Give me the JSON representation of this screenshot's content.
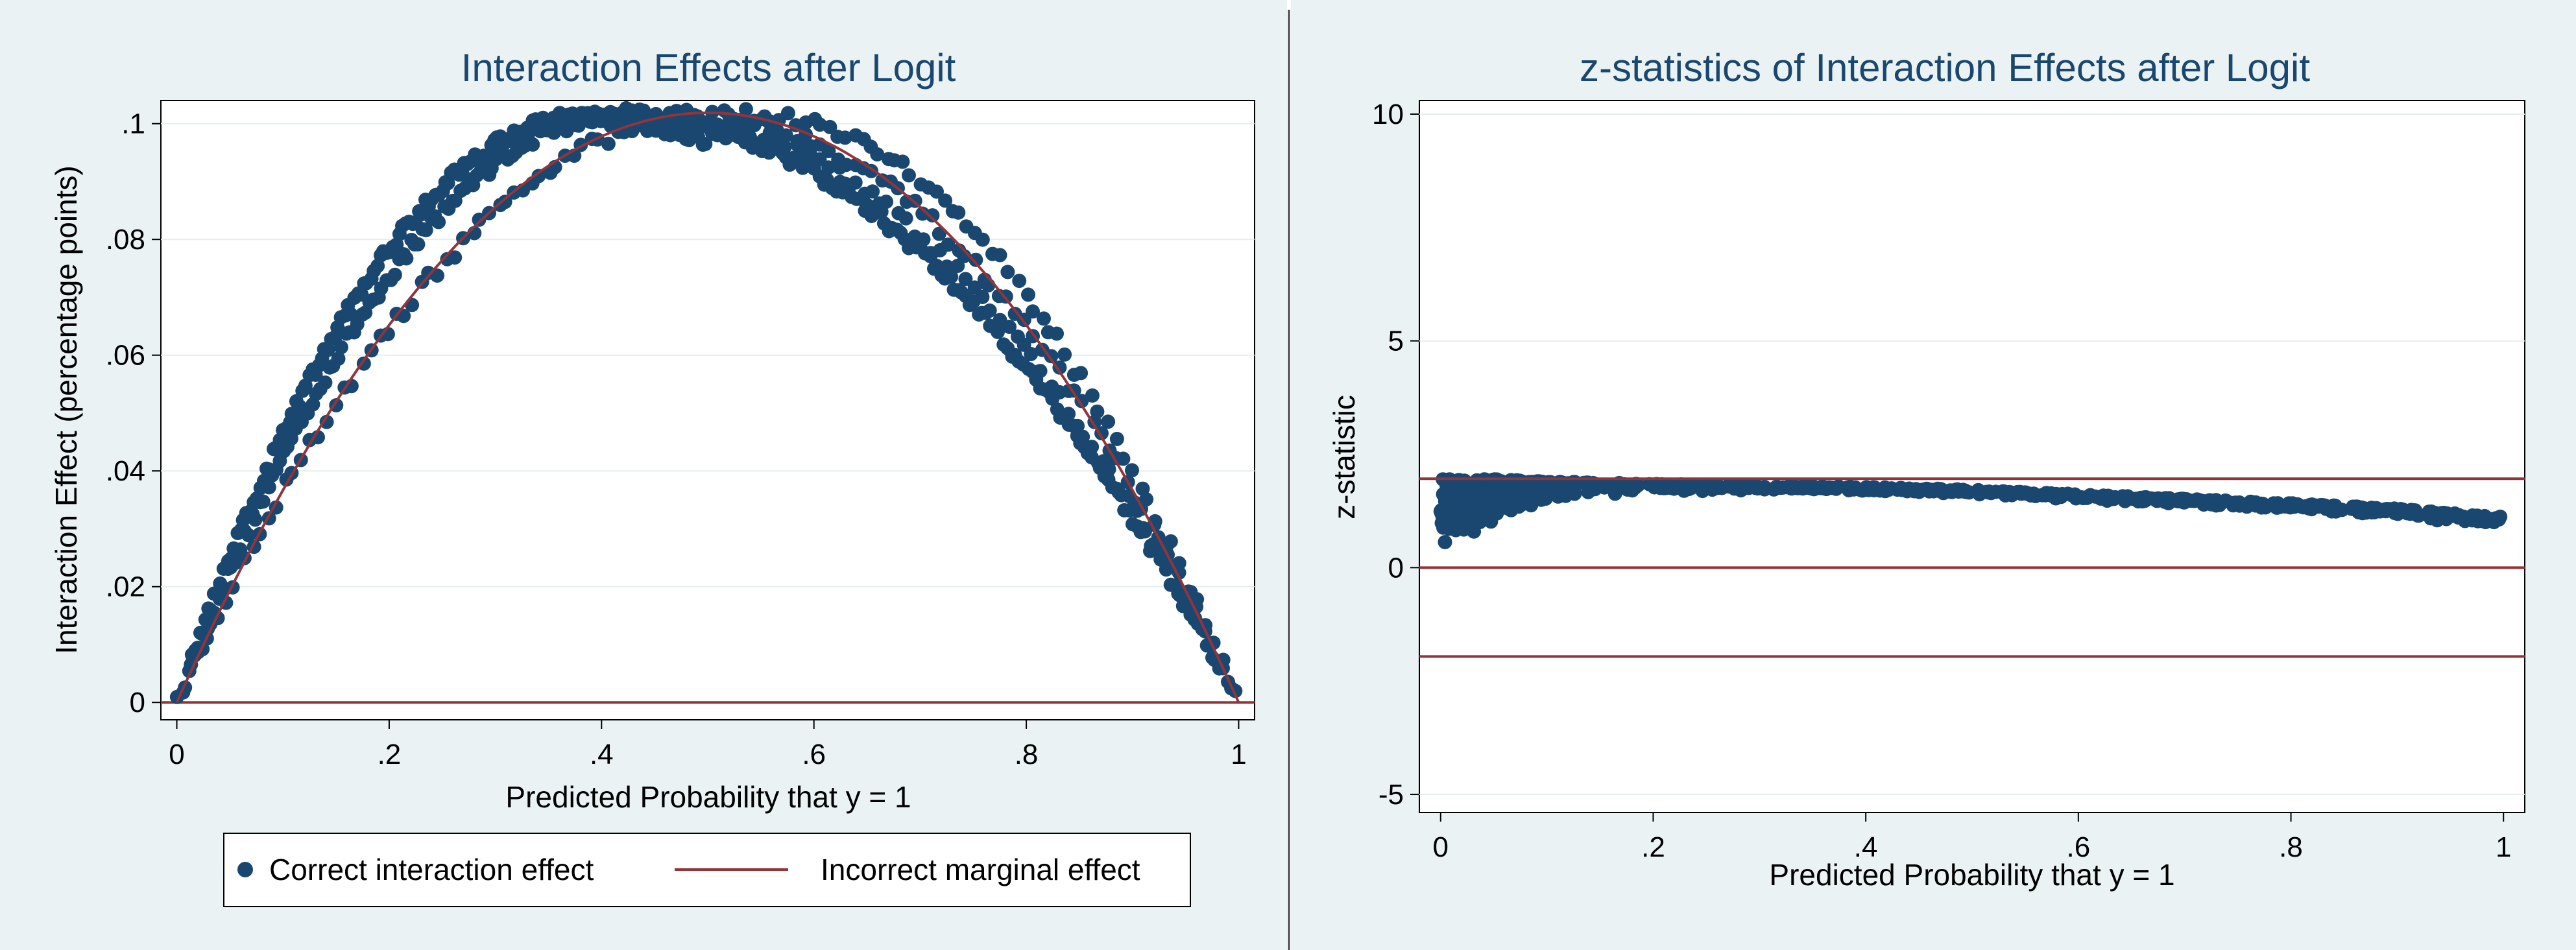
{
  "colors": {
    "outer_bg": "#eaf2f3",
    "plot_bg": "#ffffff",
    "grid": "#e6eded",
    "series_marker": "#1a476f",
    "ref_line": "#90353b",
    "text": "#000000"
  },
  "chart_data": [
    {
      "type": "scatter",
      "title": "Interaction Effects after Logit",
      "xlabel": "Predicted Probability that y = 1",
      "ylabel": "Interaction Effect (percentage points)",
      "xlim": [
        -0.015,
        1.015
      ],
      "ylim": [
        -0.003,
        0.104
      ],
      "x_ticks": [
        0,
        0.2,
        0.4,
        0.6,
        0.8,
        1
      ],
      "x_tick_labels": [
        "0",
        ".2",
        ".4",
        ".6",
        ".8",
        "1"
      ],
      "y_ticks": [
        0,
        0.02,
        0.04,
        0.06,
        0.08,
        0.1
      ],
      "y_tick_labels": [
        "0",
        ".02",
        ".04",
        ".06",
        ".08",
        ".1"
      ],
      "grid": true,
      "legend_position": "bottom",
      "series": [
        {
          "name": "Correct interaction effect",
          "kind": "markers",
          "bands": [
            {
              "x_peak": 0.42,
              "peak": 0.1015,
              "x_range": [
                0,
                1
              ],
              "count": 260
            },
            {
              "x_peak": 0.38,
              "peak": 0.101,
              "x_range": [
                0.01,
                0.5
              ],
              "count": 160
            },
            {
              "x_peak": 0.5,
              "peak": 0.101,
              "x_range": [
                0.02,
                0.98
              ],
              "count": 120
            },
            {
              "x_peak": 0.45,
              "peak": 0.1015,
              "x_range": [
                0.42,
                0.98
              ],
              "count": 70
            },
            {
              "x_peak": 0.55,
              "peak": 0.1015,
              "x_range": [
                0.45,
                0.99
              ],
              "count": 70
            }
          ]
        },
        {
          "name": "Incorrect marginal effect",
          "kind": "line",
          "formula": "0.25 * 1.63 * p * (1 - p)",
          "x": [
            0,
            0.05,
            0.1,
            0.15,
            0.2,
            0.25,
            0.3,
            0.35,
            0.4,
            0.45,
            0.5,
            0.55,
            0.6,
            0.65,
            0.7,
            0.75,
            0.8,
            0.85,
            0.9,
            0.95,
            1
          ],
          "y": [
            0,
            0.0194,
            0.0367,
            0.052,
            0.0652,
            0.0764,
            0.0856,
            0.0927,
            0.0978,
            0.1008,
            0.1019,
            0.1008,
            0.0978,
            0.0927,
            0.0856,
            0.0764,
            0.0652,
            0.052,
            0.0367,
            0.0194,
            0
          ]
        }
      ],
      "reference_lines": [
        {
          "y": 0
        }
      ]
    },
    {
      "type": "scatter",
      "title": "z-statistics of Interaction Effects after Logit",
      "xlabel": "Predicted Probability that y = 1",
      "ylabel": "z-statistic",
      "xlim": [
        -0.02,
        1.02
      ],
      "ylim": [
        -5.4,
        10.3
      ],
      "x_ticks": [
        0,
        0.2,
        0.4,
        0.6,
        0.8,
        1
      ],
      "x_tick_labels": [
        "0",
        ".2",
        ".4",
        ".6",
        ".8",
        "1"
      ],
      "y_ticks": [
        -5,
        0,
        5,
        10
      ],
      "y_tick_labels": [
        "-5",
        "0",
        "5",
        "10"
      ],
      "grid": true,
      "series": [
        {
          "name": "z-statistic",
          "kind": "markers",
          "trend_x": [
            0,
            0.05,
            0.1,
            0.2,
            0.3,
            0.4,
            0.5,
            0.6,
            0.7,
            0.8,
            0.9,
            1
          ],
          "trend_top": [
            1.95,
            1.95,
            1.9,
            1.85,
            1.82,
            1.78,
            1.72,
            1.62,
            1.52,
            1.42,
            1.3,
            1.12
          ],
          "trend_bottom": [
            0.4,
            1.0,
            1.5,
            1.65,
            1.7,
            1.68,
            1.6,
            1.5,
            1.38,
            1.25,
            1.1,
            0.95
          ],
          "count": 900
        }
      ],
      "reference_lines": [
        {
          "y": 1.96
        },
        {
          "y": 0
        },
        {
          "y": -1.96
        }
      ]
    }
  ]
}
